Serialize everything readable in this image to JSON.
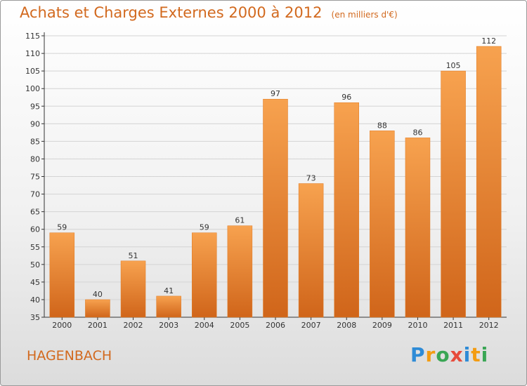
{
  "chart_data": {
    "type": "bar",
    "title": "Achats et Charges Externes 2000 à 2012",
    "subtitle": "(en milliers d'€)",
    "categories": [
      "2000",
      "2001",
      "2002",
      "2003",
      "2004",
      "2005",
      "2006",
      "2007",
      "2008",
      "2009",
      "2010",
      "2011",
      "2012"
    ],
    "values": [
      59,
      40,
      51,
      41,
      59,
      61,
      97,
      73,
      96,
      88,
      86,
      105,
      112
    ],
    "ylim": [
      35,
      115
    ],
    "yticks": [
      35,
      40,
      45,
      50,
      55,
      60,
      65,
      70,
      75,
      80,
      85,
      90,
      95,
      100,
      105,
      110,
      115
    ],
    "grid": true,
    "bar_color": "#f08a2a"
  },
  "commune": "HAGENBACH",
  "logo": {
    "letters": [
      {
        "ch": "P",
        "color": "#2e8bd6"
      },
      {
        "ch": "r",
        "color": "#f39c12"
      },
      {
        "ch": "o",
        "color": "#3aa655"
      },
      {
        "ch": "x",
        "color": "#e74c3c"
      },
      {
        "ch": "i",
        "color": "#2e8bd6"
      },
      {
        "ch": "t",
        "color": "#f39c12"
      },
      {
        "ch": "i",
        "color": "#3aa655"
      }
    ]
  }
}
